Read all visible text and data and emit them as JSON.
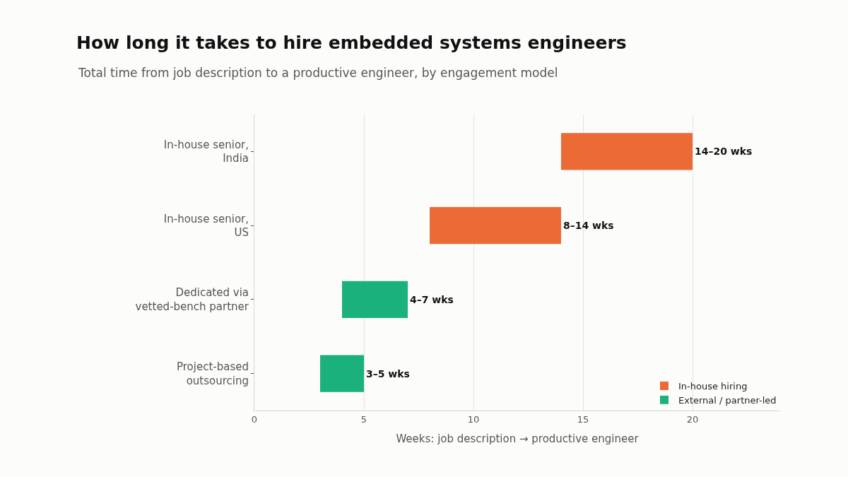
{
  "chart_data": {
    "type": "bar",
    "orientation": "horizontal",
    "title": "How long it takes to hire embedded systems engineers",
    "subtitle": "Total time from job description to a productive engineer, by engagement model",
    "xlabel": "Weeks: job description → productive engineer",
    "categories": [
      "In-house senior,\nIndia",
      "In-house senior,\nUS",
      "Dedicated via\nvetted-bench partner",
      "Project-based\noutsourcing"
    ],
    "series": [
      {
        "name": "In-house hiring",
        "color": "#ec6a36",
        "base": [
          14,
          8,
          null,
          null
        ],
        "values": [
          6,
          6,
          null,
          null
        ],
        "value_labels": [
          "14–20 wks",
          "8–14 wks",
          null,
          null
        ]
      },
      {
        "name": "External / partner-led",
        "color": "#1bb17a",
        "base": [
          null,
          null,
          4,
          3
        ],
        "values": [
          null,
          null,
          3,
          2
        ],
        "value_labels": [
          null,
          null,
          "4–7 wks",
          "3–5 wks"
        ]
      }
    ],
    "xlim": [
      0,
      24
    ],
    "xticks": [
      0,
      5,
      10,
      15,
      20
    ],
    "grid": "x",
    "legend": "bottom right"
  }
}
